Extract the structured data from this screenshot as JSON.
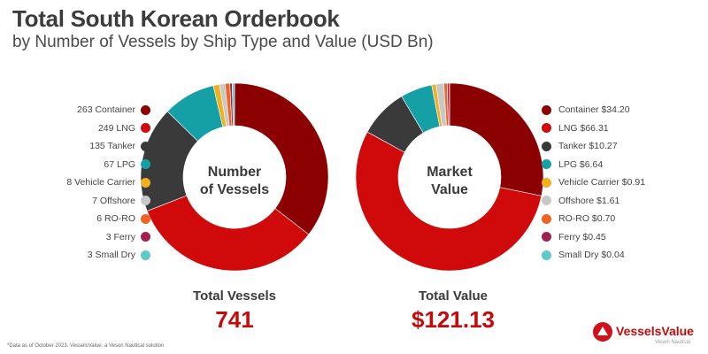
{
  "header": {
    "title": "Total South Korean Orderbook",
    "subtitle": "by Number of Vessels by Ship Type and Value (USD Bn)"
  },
  "chart_data": [
    {
      "type": "pie",
      "variant": "donut",
      "center_label": "Number of Vessels",
      "legend_placement": "left",
      "categories": [
        "Container",
        "LNG",
        "Tanker",
        "LPG",
        "Vehicle Carrier",
        "Offshore",
        "RO-RO",
        "Ferry",
        "Small Dry"
      ],
      "values": [
        263,
        249,
        135,
        67,
        8,
        7,
        6,
        3,
        3
      ],
      "legend_labels": [
        "263 Container",
        "249 LNG",
        "135 Tanker",
        "67 LPG",
        "8 Vehicle Carrier",
        "7 Offshore",
        "6 RO-RO",
        "3 Ferry",
        "3 Small Dry"
      ],
      "colors": [
        "#8b0000",
        "#d00a0a",
        "#3a3a3a",
        "#15a0a6",
        "#f0b020",
        "#c8c8c8",
        "#ee6422",
        "#a02050",
        "#5fc8c8"
      ],
      "total_label": "Total Vessels",
      "total_value": "741"
    },
    {
      "type": "pie",
      "variant": "donut",
      "center_label": "Market Value",
      "legend_placement": "right",
      "categories": [
        "Container",
        "LNG",
        "Tanker",
        "LPG",
        "Vehicle Carrier",
        "Offshore",
        "RO-RO",
        "Ferry",
        "Small Dry"
      ],
      "values": [
        34.2,
        66.31,
        10.27,
        6.64,
        0.91,
        1.61,
        0.7,
        0.45,
        0.04
      ],
      "legend_labels": [
        "Container $34.20",
        "LNG $66.31",
        "Tanker $10.27",
        "LPG $6.64",
        "Vehicle Carrier $0.91",
        "Offshore $1.61",
        "RO-RO $0.70",
        "Ferry $0.45",
        "Small Dry $0.04"
      ],
      "colors": [
        "#8b0000",
        "#d00a0a",
        "#3a3a3a",
        "#15a0a6",
        "#f0b020",
        "#c8c8c8",
        "#ee6422",
        "#a02050",
        "#5fc8c8"
      ],
      "total_label": "Total Value",
      "total_value": "$121.13"
    }
  ],
  "footnote": "*Data as of October 2023. VesselsValue, a Veson Nautical solution",
  "brand": {
    "name": "VesselsValue",
    "tagline": "Veson Nautical",
    "color": "#d0101a"
  }
}
